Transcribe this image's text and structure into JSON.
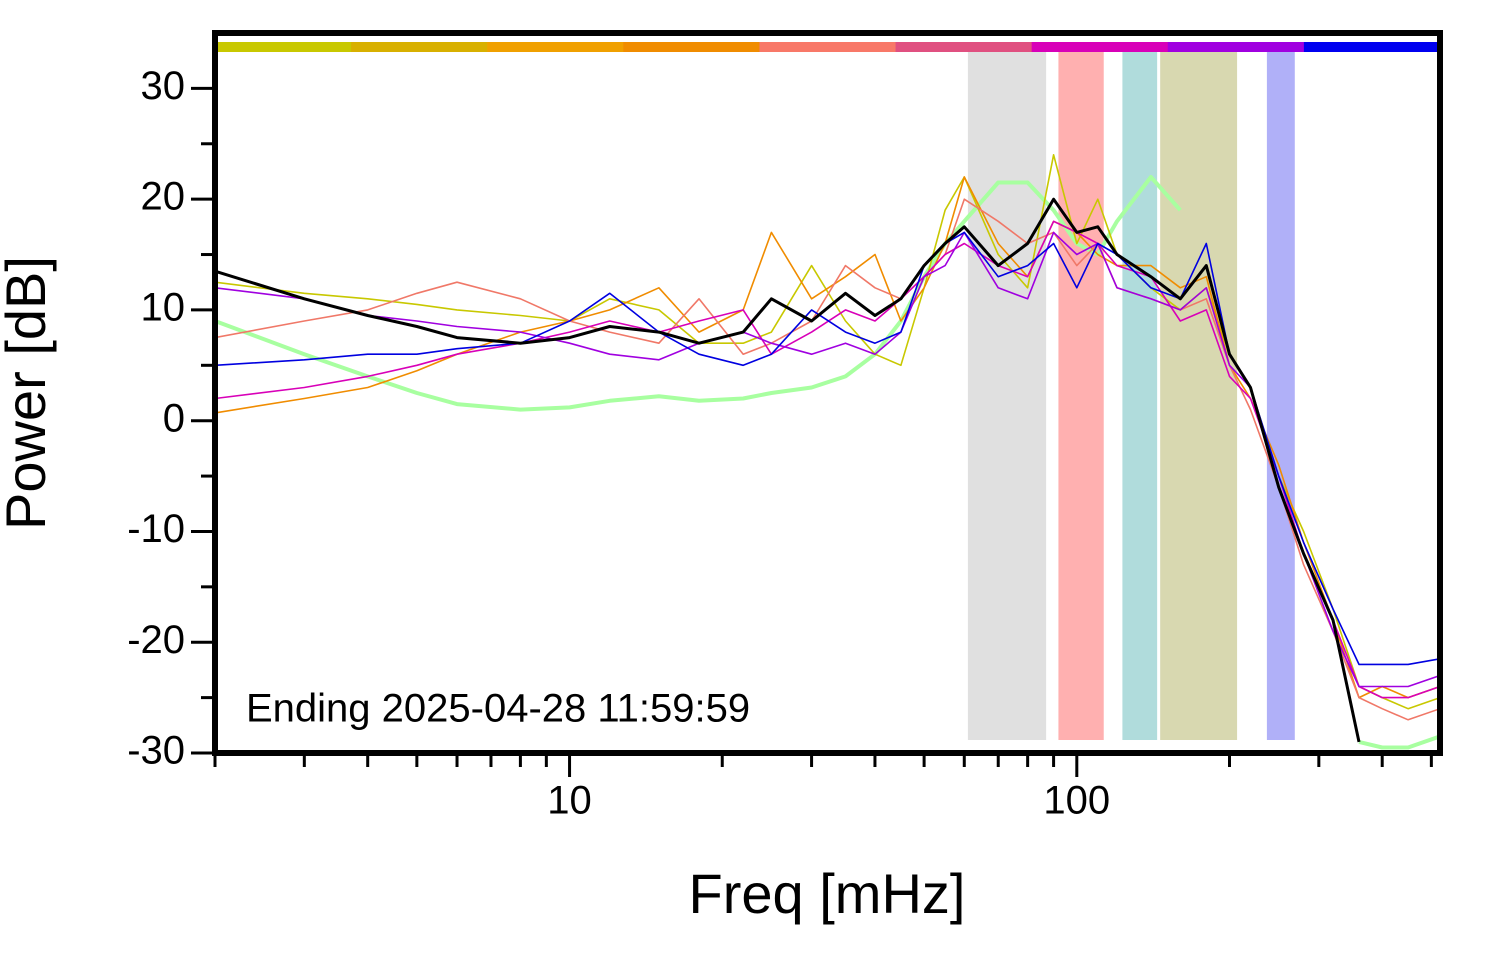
{
  "chart_data": {
    "type": "line",
    "xlabel": "Freq [mHz]",
    "ylabel": "Power [dB]",
    "annotation": "Ending 2025-04-28 11:59:59",
    "xscale": "log",
    "xlim": [
      2,
      520
    ],
    "ylim": [
      -30,
      35
    ],
    "xticks": [
      10,
      100
    ],
    "xminorticks": [
      2,
      3,
      4,
      5,
      6,
      7,
      8,
      9,
      20,
      30,
      40,
      50,
      60,
      70,
      80,
      90,
      200,
      300,
      400,
      500
    ],
    "yticks": [
      -30,
      -20,
      -10,
      0,
      10,
      20,
      30
    ],
    "yminorticks": [
      -25,
      -15,
      -5,
      5,
      15,
      25
    ],
    "colorbar": [
      "#c8c800",
      "#d8b000",
      "#f0a000",
      "#f08c00",
      "#f87868",
      "#e05080",
      "#d800b8",
      "#a000e0",
      "#0000f0"
    ],
    "bands": [
      {
        "x": [
          61,
          87
        ],
        "color": "#e0e0e0"
      },
      {
        "x": [
          92,
          113
        ],
        "color": "#ffb0b0"
      },
      {
        "x": [
          123,
          144
        ],
        "color": "#b0dcdc"
      },
      {
        "x": [
          146,
          207
        ],
        "color": "#d8d8b0"
      },
      {
        "x": [
          237,
          269
        ],
        "color": "#b0b0f8"
      }
    ],
    "x": [
      2,
      3,
      4,
      5,
      6,
      8,
      10,
      12,
      15,
      18,
      22,
      25,
      30,
      35,
      40,
      45,
      50,
      55,
      60,
      70,
      80,
      90,
      100,
      110,
      120,
      140,
      160,
      180,
      200,
      220,
      250,
      280,
      320,
      360,
      400,
      450,
      520
    ],
    "series": [
      {
        "color": "#a8ffa0",
        "width": 4,
        "values": [
          9,
          6,
          4,
          2.5,
          1.5,
          1,
          1.2,
          1.8,
          2.2,
          1.8,
          2,
          2.5,
          3,
          4,
          6,
          9,
          13,
          16,
          18,
          21.5,
          21.5,
          19,
          16,
          15,
          18,
          22,
          19,
          null,
          null,
          null,
          null,
          null,
          null,
          -29,
          -29.5,
          -29.5,
          -28.5
        ]
      },
      {
        "color": "#c8c800",
        "width": 1.6,
        "values": [
          12.5,
          11.5,
          11,
          10.5,
          10,
          9.5,
          9,
          11,
          10,
          7,
          7,
          8,
          14,
          9,
          6,
          5,
          12,
          19,
          22,
          15,
          12,
          24,
          16,
          20,
          15,
          12,
          10,
          12,
          6,
          3,
          -5,
          -10,
          -17,
          -24,
          -25,
          -26,
          -25
        ]
      },
      {
        "color": "#f08c00",
        "width": 1.6,
        "values": [
          0.7,
          2,
          3,
          4.5,
          6,
          8,
          9,
          10,
          12,
          8,
          10,
          17,
          11,
          13,
          15,
          9,
          12,
          16,
          22,
          16,
          13,
          18,
          17,
          15,
          14,
          14,
          12,
          13,
          5,
          2,
          -4,
          -11,
          -18,
          -25,
          -24,
          -25,
          -24
        ]
      },
      {
        "color": "#f07868",
        "width": 1.6,
        "values": [
          7.5,
          9,
          10,
          11.5,
          12.5,
          11,
          9,
          8,
          7,
          11,
          6,
          7,
          9,
          14,
          12,
          11,
          13,
          15,
          20,
          18,
          16,
          17,
          14,
          16,
          12,
          11,
          10,
          11,
          5,
          1,
          -6,
          -13,
          -19,
          -25,
          -26,
          -27,
          -26
        ]
      },
      {
        "color": "#d800b8",
        "width": 1.6,
        "values": [
          2,
          3,
          4,
          5,
          6,
          7,
          8,
          9,
          8,
          9,
          10,
          6,
          8,
          10,
          9,
          11,
          13,
          15,
          16,
          14,
          13,
          18,
          17,
          16,
          14,
          13,
          9,
          10,
          4,
          2,
          -5,
          -12,
          -18,
          -24,
          -25,
          -25,
          -24
        ]
      },
      {
        "color": "#a000e0",
        "width": 1.6,
        "values": [
          12,
          11,
          9.5,
          9,
          8.5,
          8,
          7,
          6,
          5.5,
          7,
          8,
          7,
          6,
          7,
          6,
          8,
          13,
          14,
          17,
          12,
          11,
          17,
          15,
          16,
          12,
          11,
          10,
          12,
          5,
          3,
          -6,
          -12,
          -19,
          -24,
          -24,
          -24,
          -23
        ]
      },
      {
        "color": "#0000e0",
        "width": 1.6,
        "values": [
          5,
          5.5,
          6,
          6,
          6.5,
          7,
          9,
          11.5,
          8,
          6,
          5,
          6,
          10,
          8,
          7,
          8,
          14,
          16,
          17,
          13,
          14,
          16,
          12,
          16,
          15,
          12,
          11,
          16,
          6,
          3,
          -5,
          -11,
          -17,
          -22,
          -22,
          -22,
          -21.5
        ]
      },
      {
        "color": "#000000",
        "width": 3,
        "values": [
          13.5,
          11,
          9.5,
          8.5,
          7.5,
          7,
          7.5,
          8.5,
          8,
          7,
          8,
          11,
          9,
          11.5,
          9.5,
          11,
          14,
          16,
          17.5,
          14,
          16,
          20,
          17,
          17.5,
          15,
          13,
          11,
          14,
          6,
          3,
          -6,
          -12,
          -18,
          -29,
          null,
          null,
          null
        ]
      }
    ]
  }
}
